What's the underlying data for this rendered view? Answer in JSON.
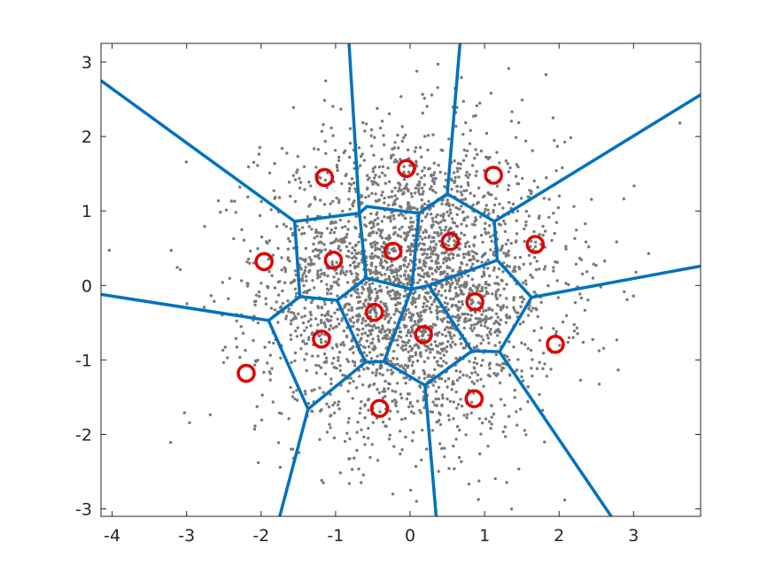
{
  "chart_data": {
    "type": "scatter",
    "title": "",
    "xlabel": "",
    "ylabel": "",
    "xlim": [
      -4.15,
      3.9
    ],
    "ylim": [
      -3.1,
      3.25
    ],
    "x_ticks": [
      -4,
      -3,
      -2,
      -1,
      0,
      1,
      2,
      3
    ],
    "y_ticks": [
      -3,
      -2,
      -1,
      0,
      1,
      2,
      3
    ],
    "x_tick_labels": [
      "-4",
      "-3",
      "-2",
      "-1",
      "0",
      "1",
      "2",
      "3"
    ],
    "y_tick_labels": [
      "-3",
      "-2",
      "-1",
      "0",
      "1",
      "2",
      "3"
    ],
    "grid": false,
    "legend": "none",
    "colors": {
      "points": "#7a7a7a",
      "voronoi_edges": "#0072BD",
      "centroids": "#e00000",
      "axes": "#262626"
    },
    "sample_points": {
      "description": "gray dots drawn from a 2-D standard normal, roughly 3000 samples",
      "count": 3000,
      "distribution": "standard-normal-2d"
    },
    "centroids": [
      {
        "x": -1.15,
        "y": 1.45
      },
      {
        "x": -0.05,
        "y": 1.57
      },
      {
        "x": 1.12,
        "y": 1.48
      },
      {
        "x": -1.03,
        "y": 0.34
      },
      {
        "x": -0.23,
        "y": 0.46
      },
      {
        "x": 0.54,
        "y": 0.59
      },
      {
        "x": 1.68,
        "y": 0.55
      },
      {
        "x": -1.96,
        "y": 0.32
      },
      {
        "x": -0.48,
        "y": -0.36
      },
      {
        "x": 0.18,
        "y": -0.66
      },
      {
        "x": 0.87,
        "y": -0.22
      },
      {
        "x": -1.19,
        "y": -0.72
      },
      {
        "x": 1.95,
        "y": -0.79
      },
      {
        "x": -2.2,
        "y": -1.18
      },
      {
        "x": -0.41,
        "y": -1.65
      },
      {
        "x": 0.86,
        "y": -1.52
      }
    ],
    "voronoi_edges": [
      [
        [
          -1.55,
          0.86
        ],
        [
          -4.15,
          2.75
        ]
      ],
      [
        [
          -1.55,
          0.86
        ],
        [
          -0.68,
          0.97
        ]
      ],
      [
        [
          -0.68,
          0.97
        ],
        [
          -0.82,
          3.25
        ]
      ],
      [
        [
          -0.68,
          0.97
        ],
        [
          -0.58,
          1.06
        ]
      ],
      [
        [
          -0.58,
          1.06
        ],
        [
          0.12,
          0.97
        ]
      ],
      [
        [
          0.12,
          0.97
        ],
        [
          0.5,
          1.23
        ]
      ],
      [
        [
          0.5,
          1.23
        ],
        [
          0.67,
          3.25
        ]
      ],
      [
        [
          0.5,
          1.23
        ],
        [
          1.13,
          0.86
        ]
      ],
      [
        [
          1.13,
          0.86
        ],
        [
          3.9,
          2.56
        ]
      ],
      [
        [
          1.13,
          0.86
        ],
        [
          1.17,
          0.34
        ]
      ],
      [
        [
          1.17,
          0.34
        ],
        [
          1.63,
          -0.16
        ]
      ],
      [
        [
          1.63,
          -0.16
        ],
        [
          3.9,
          0.26
        ]
      ],
      [
        [
          1.63,
          -0.16
        ],
        [
          1.2,
          -0.89
        ]
      ],
      [
        [
          1.2,
          -0.89
        ],
        [
          2.7,
          -3.1
        ]
      ],
      [
        [
          1.2,
          -0.89
        ],
        [
          0.83,
          -0.88
        ]
      ],
      [
        [
          0.83,
          -0.88
        ],
        [
          0.2,
          -1.34
        ]
      ],
      [
        [
          0.2,
          -1.34
        ],
        [
          0.35,
          -3.1
        ]
      ],
      [
        [
          0.2,
          -1.34
        ],
        [
          -0.35,
          -1.02
        ]
      ],
      [
        [
          -0.35,
          -1.02
        ],
        [
          -0.6,
          -1.03
        ]
      ],
      [
        [
          -0.6,
          -1.03
        ],
        [
          -1.37,
          -1.66
        ]
      ],
      [
        [
          -1.37,
          -1.66
        ],
        [
          -1.75,
          -3.1
        ]
      ],
      [
        [
          -1.37,
          -1.66
        ],
        [
          -1.9,
          -0.47
        ]
      ],
      [
        [
          -1.9,
          -0.47
        ],
        [
          -4.15,
          -0.12
        ]
      ],
      [
        [
          -1.9,
          -0.47
        ],
        [
          -1.48,
          -0.15
        ]
      ],
      [
        [
          -1.48,
          -0.15
        ],
        [
          -1.55,
          0.86
        ]
      ],
      [
        [
          -1.48,
          -0.15
        ],
        [
          -0.98,
          -0.2
        ]
      ],
      [
        [
          -0.98,
          -0.2
        ],
        [
          -0.59,
          0.1
        ]
      ],
      [
        [
          -0.59,
          0.1
        ],
        [
          -0.68,
          0.97
        ]
      ],
      [
        [
          -0.59,
          0.1
        ],
        [
          0.02,
          -0.05
        ]
      ],
      [
        [
          0.02,
          -0.05
        ],
        [
          0.12,
          0.97
        ]
      ],
      [
        [
          0.02,
          -0.05
        ],
        [
          0.25,
          0.0
        ]
      ],
      [
        [
          0.25,
          0.0
        ],
        [
          1.17,
          0.34
        ]
      ],
      [
        [
          0.25,
          0.0
        ],
        [
          0.83,
          -0.88
        ]
      ],
      [
        [
          0.02,
          -0.05
        ],
        [
          -0.35,
          -1.02
        ]
      ],
      [
        [
          -0.98,
          -0.2
        ],
        [
          -0.6,
          -1.03
        ]
      ]
    ]
  }
}
